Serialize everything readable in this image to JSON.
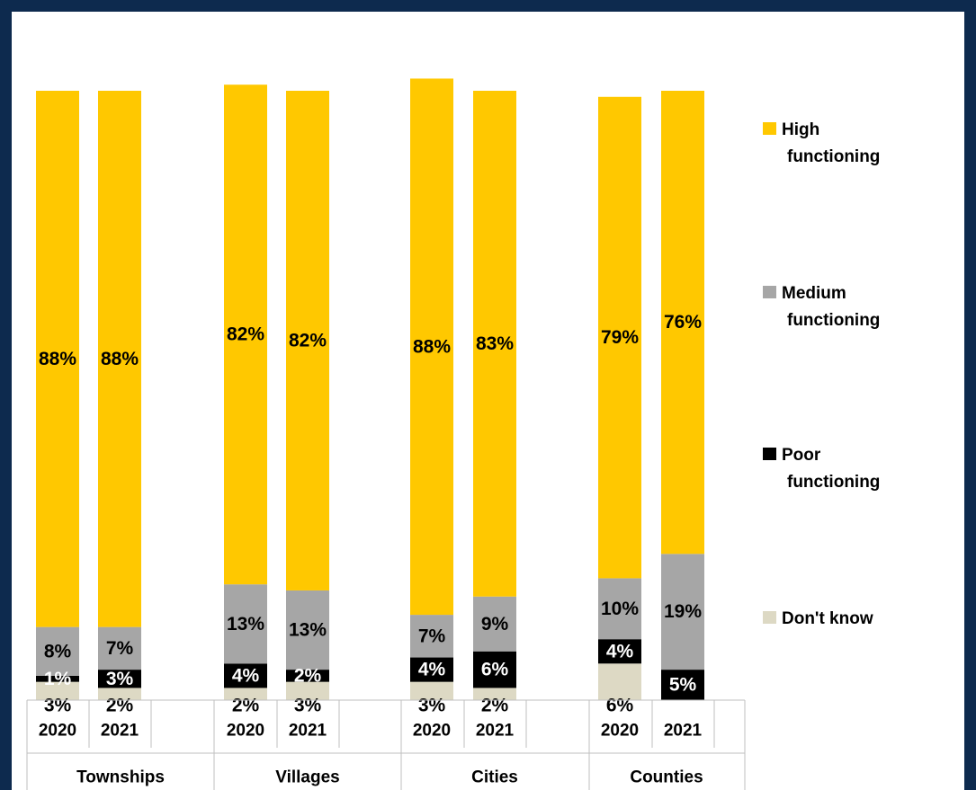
{
  "chart_data": {
    "type": "bar",
    "stacked": true,
    "groups": [
      "Townships",
      "Villages",
      "Cities",
      "Counties"
    ],
    "years": [
      "2020",
      "2021"
    ],
    "series": [
      {
        "name": "Don't know",
        "color": "#ddd9c4",
        "label_color": "#000000",
        "values": [
          3,
          2,
          2,
          3,
          3,
          2,
          6,
          0
        ]
      },
      {
        "name": "Poor functioning",
        "color": "#000000",
        "label_color": "#ffffff",
        "values": [
          1,
          3,
          4,
          2,
          4,
          6,
          4,
          5
        ]
      },
      {
        "name": "Medium functioning",
        "color": "#a6a6a6",
        "label_color": "#000000",
        "values": [
          8,
          7,
          13,
          13,
          7,
          9,
          10,
          19
        ]
      },
      {
        "name": "High functioning",
        "color": "#ffc800",
        "label_color": "#000000",
        "values": [
          88,
          88,
          82,
          82,
          88,
          83,
          79,
          76
        ]
      }
    ],
    "data_labels": {
      "Don't know": [
        "3%",
        "2%",
        "2%",
        "3%",
        "3%",
        "2%",
        "6%",
        ""
      ],
      "Poor functioning": [
        "1%",
        "3%",
        "4%",
        "2%",
        "4%",
        "6%",
        "4%",
        "5%"
      ],
      "Medium functioning": [
        "8%",
        "7%",
        "13%",
        "13%",
        "7%",
        "9%",
        "10%",
        "19%"
      ],
      "High functioning": [
        "88%",
        "88%",
        "82%",
        "82%",
        "88%",
        "83%",
        "79%",
        "76%"
      ]
    },
    "ylim": [
      0,
      100
    ],
    "grid": false,
    "legend_position": "right"
  },
  "legend": [
    {
      "first": "High",
      "rest": "functioning",
      "color": "#ffc800"
    },
    {
      "first": "Medium",
      "rest": "functioning",
      "color": "#a6a6a6"
    },
    {
      "first": "Poor",
      "rest": "functioning",
      "color": "#000000"
    },
    {
      "first": "Don't know",
      "rest": "",
      "color": "#ddd9c4"
    }
  ]
}
